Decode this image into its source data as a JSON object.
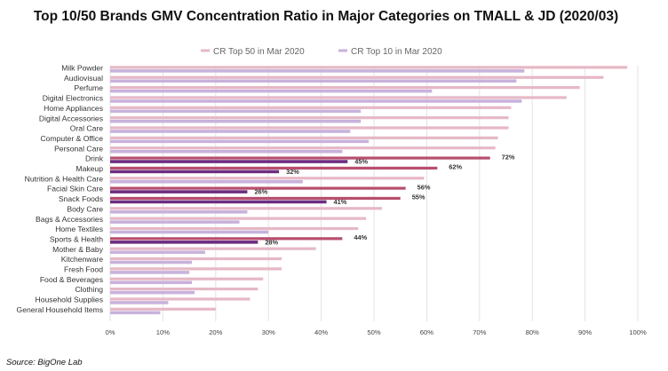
{
  "chart_data": {
    "type": "bar",
    "orientation": "horizontal",
    "title": "Top 10/50 Brands GMV Concentration Ratio in Major Categories on TMALL & JD (2020/03)",
    "source": "Source: BigOne Lab",
    "legend_placement": "top-right",
    "xlim": [
      0,
      1
    ],
    "xticks": [
      "0%",
      "10%",
      "20%",
      "30%",
      "40%",
      "50%",
      "60%",
      "70%",
      "80%",
      "90%",
      "100%"
    ],
    "grid": true,
    "categories": [
      "Milk Powder",
      "Audiovisual",
      "Perfume",
      "Digital Electronics",
      "Home Appliances",
      "Digital Accessories",
      "Oral Care",
      "Computer & Office",
      "Personal Care",
      "Drink",
      "Makeup",
      "Nutrition & Health Care",
      "Facial Skin Care",
      "Snack Foods",
      "Body Care",
      "Bags & Accessories",
      "Home Textiles",
      "Sports & Health",
      "Mother & Baby",
      "Kitchenware",
      "Fresh Food",
      "Food & Beverages",
      "Clothing",
      "Household Supplies",
      "General Household Items"
    ],
    "highlighted": [
      9,
      10,
      12,
      13,
      17
    ],
    "series": [
      {
        "name": "CR Top 50 in Mar 2020",
        "color": "#e6b8c6",
        "highlight_color": "#b84e6e",
        "values": [
          0.98,
          0.935,
          0.89,
          0.865,
          0.76,
          0.755,
          0.755,
          0.735,
          0.73,
          0.72,
          0.62,
          0.595,
          0.56,
          0.55,
          0.515,
          0.485,
          0.47,
          0.44,
          0.39,
          0.325,
          0.325,
          0.29,
          0.28,
          0.265,
          0.2
        ],
        "data_labels": {
          "9": "72%",
          "10": "62%",
          "12": "56%",
          "13": "55%",
          "17": "44%"
        }
      },
      {
        "name": "CR Top 10 in Mar 2020",
        "color": "#c8b2dc",
        "highlight_color": "#6d2d80",
        "values": [
          0.785,
          0.77,
          0.61,
          0.78,
          0.475,
          0.475,
          0.455,
          0.49,
          0.44,
          0.45,
          0.32,
          0.365,
          0.26,
          0.41,
          0.26,
          0.245,
          0.3,
          0.28,
          0.18,
          0.155,
          0.15,
          0.155,
          0.16,
          0.11,
          0.095
        ],
        "data_labels": {
          "9": "45%",
          "10": "32%",
          "12": "26%",
          "13": "41%",
          "17": "28%"
        }
      }
    ]
  }
}
